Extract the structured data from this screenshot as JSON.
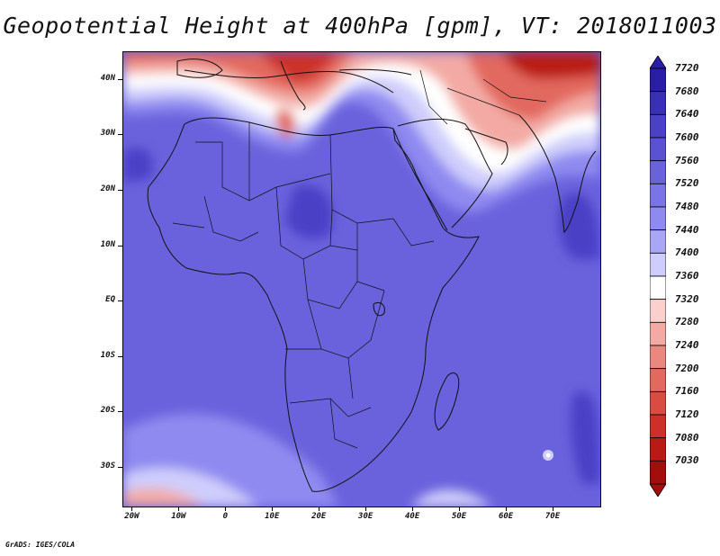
{
  "title": "Geopotential Height at 400hPa [gpm], VT: 2018011003",
  "credit": "GrADS: IGES/COLA",
  "map": {
    "lat_labels": [
      "40N",
      "30N",
      "20N",
      "10N",
      "EQ",
      "10S",
      "20S",
      "30S"
    ],
    "lat_values": [
      40,
      30,
      20,
      10,
      0,
      -10,
      -20,
      -30
    ],
    "lon_labels": [
      "20W",
      "10W",
      "0",
      "10E",
      "20E",
      "30E",
      "40E",
      "50E",
      "60E",
      "70E"
    ],
    "lon_values": [
      -20,
      -10,
      0,
      10,
      20,
      30,
      40,
      50,
      60,
      70
    ],
    "lon_range": [
      -22,
      80
    ],
    "lat_range": [
      -37,
      45
    ]
  },
  "colorbar": {
    "labels": [
      "7720",
      "7680",
      "7640",
      "7600",
      "7560",
      "7520",
      "7480",
      "7440",
      "7400",
      "7360",
      "7320",
      "7280",
      "7240",
      "7200",
      "7160",
      "7120",
      "7080",
      "7030"
    ],
    "colors": [
      "#2b1ea6",
      "#3a30b8",
      "#4a41c6",
      "#5a52d2",
      "#6a62dc",
      "#7b74e6",
      "#8f8af0",
      "#aaa6f6",
      "#cfcdfb",
      "#ffffff",
      "#fbd0cc",
      "#f3aaa4",
      "#ea8880",
      "#e2695f",
      "#d94c42",
      "#cc3129",
      "#b91a15",
      "#a10e0d"
    ]
  }
}
